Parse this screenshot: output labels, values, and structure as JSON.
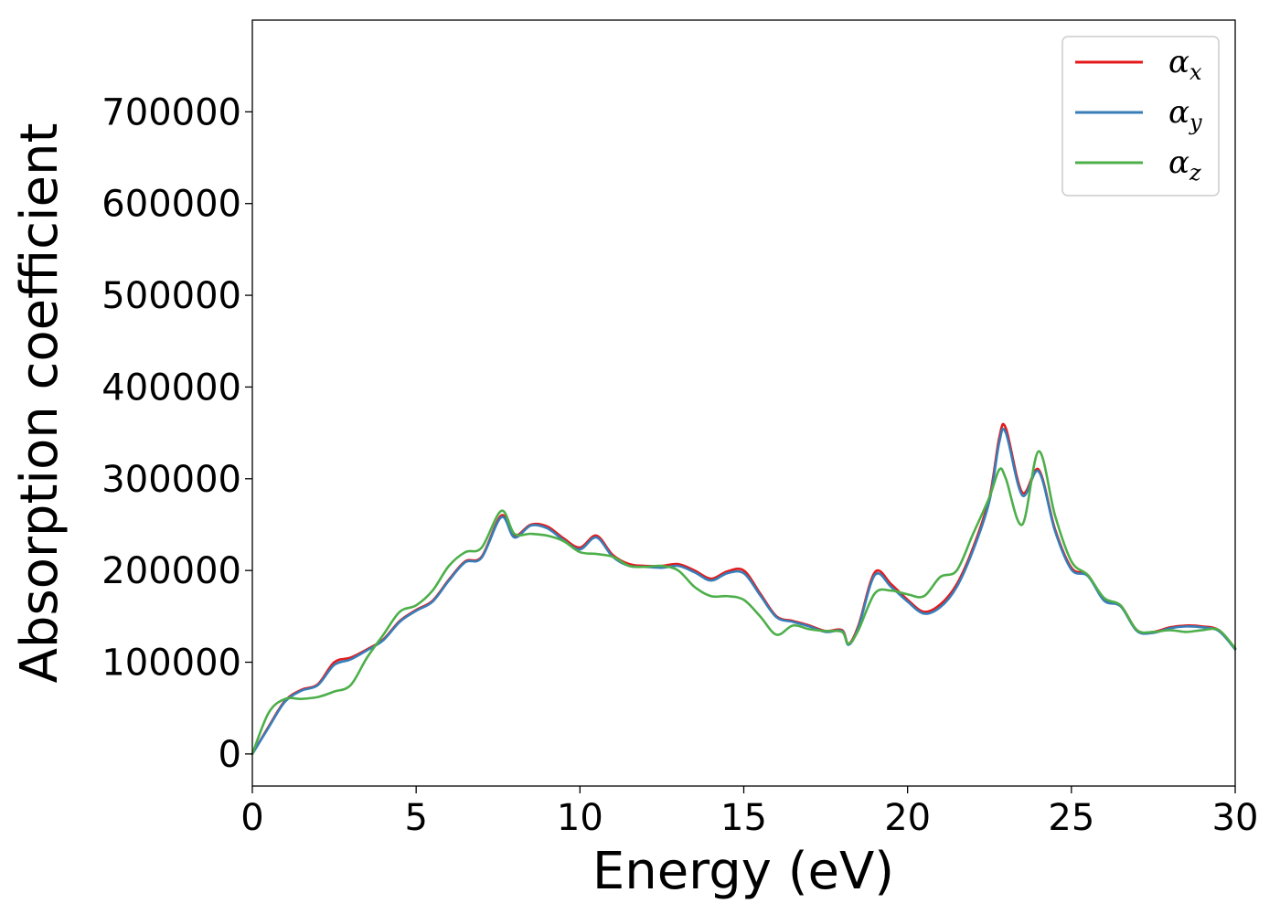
{
  "chart_data": {
    "type": "line",
    "xlabel": "Energy (eV)",
    "ylabel": "Absorption coefficient",
    "xlim": [
      0,
      30
    ],
    "ylim": [
      -35000,
      800000
    ],
    "xticks": [
      0,
      5,
      10,
      15,
      20,
      25,
      30
    ],
    "yticks": [
      0,
      100000,
      200000,
      300000,
      400000,
      500000,
      600000,
      700000
    ],
    "grid": false,
    "legend_position": "top-right",
    "series": [
      {
        "name": "α",
        "subscript": "x",
        "color": "#e41a1c",
        "x": [
          0,
          0.5,
          1,
          1.5,
          2,
          2.5,
          3,
          3.5,
          4,
          4.5,
          5,
          5.5,
          6,
          6.5,
          7,
          7.6,
          8,
          8.5,
          9,
          9.5,
          10,
          10.5,
          11,
          11.5,
          12,
          12.5,
          13,
          13.5,
          14,
          14.5,
          15,
          15.5,
          16,
          16.5,
          17,
          17.5,
          18,
          18.2,
          18.5,
          19,
          19.5,
          20,
          20.5,
          21,
          21.5,
          22,
          22.5,
          22.8,
          23,
          23.5,
          24,
          24.5,
          25,
          25.5,
          26,
          26.5,
          27,
          27.5,
          28,
          28.5,
          29,
          29.5,
          30
        ],
        "values": [
          0,
          30000,
          58000,
          70000,
          76000,
          100000,
          105000,
          114000,
          125000,
          145000,
          157000,
          167000,
          190000,
          210000,
          215000,
          260000,
          238000,
          250000,
          248000,
          235000,
          225000,
          238000,
          217000,
          207000,
          205000,
          205000,
          207000,
          200000,
          191000,
          199000,
          200000,
          175000,
          150000,
          145000,
          140000,
          134000,
          135000,
          120000,
          140000,
          198000,
          185000,
          168000,
          155000,
          163000,
          185000,
          225000,
          280000,
          345000,
          355000,
          285000,
          310000,
          245000,
          203000,
          195000,
          168000,
          162000,
          135000,
          133000,
          138000,
          140000,
          139000,
          135000,
          115000
        ]
      },
      {
        "name": "α",
        "subscript": "y",
        "color": "#377eb8",
        "x": [
          0,
          0.5,
          1,
          1.5,
          2,
          2.5,
          3,
          3.5,
          4,
          4.5,
          5,
          5.5,
          6,
          6.5,
          7,
          7.6,
          8,
          8.5,
          9,
          9.5,
          10,
          10.5,
          11,
          11.5,
          12,
          12.5,
          13,
          13.5,
          14,
          14.5,
          15,
          15.5,
          16,
          16.5,
          17,
          17.5,
          18,
          18.2,
          18.5,
          19,
          19.5,
          20,
          20.5,
          21,
          21.5,
          22,
          22.5,
          22.8,
          23,
          23.5,
          24,
          24.5,
          25,
          25.5,
          26,
          26.5,
          27,
          27.5,
          28,
          28.5,
          29,
          29.5,
          30
        ],
        "values": [
          0,
          29000,
          57000,
          69000,
          75000,
          97000,
          103000,
          113000,
          124000,
          144000,
          156000,
          166000,
          189000,
          209000,
          214000,
          258000,
          236000,
          249000,
          246000,
          233000,
          223000,
          236000,
          215000,
          205000,
          204000,
          203000,
          205000,
          198000,
          189000,
          197000,
          197000,
          173000,
          149000,
          144000,
          139000,
          133000,
          134000,
          119000,
          138000,
          195000,
          182000,
          166000,
          153000,
          160000,
          182000,
          222000,
          276000,
          340000,
          350000,
          282000,
          308000,
          243000,
          201000,
          194000,
          167000,
          161000,
          134000,
          132000,
          137000,
          139000,
          138000,
          134000,
          114000
        ]
      },
      {
        "name": "α",
        "subscript": "z",
        "color": "#4daf4a",
        "x": [
          0,
          0.5,
          1,
          1.5,
          2,
          2.5,
          3,
          3.5,
          4,
          4.5,
          5,
          5.5,
          6,
          6.5,
          7,
          7.6,
          8,
          8.5,
          9,
          9.5,
          10,
          10.5,
          11,
          11.5,
          12,
          12.5,
          13,
          13.5,
          14,
          14.5,
          15,
          15.5,
          16,
          16.5,
          17,
          17.5,
          18,
          18.2,
          18.5,
          19,
          19.5,
          20,
          20.5,
          21,
          21.5,
          22,
          22.5,
          22.8,
          23,
          23.5,
          24,
          24.5,
          25,
          25.5,
          26,
          26.5,
          27,
          27.5,
          28,
          28.5,
          29,
          29.5,
          30
        ],
        "values": [
          0,
          45000,
          60000,
          60000,
          62000,
          68000,
          75000,
          105000,
          130000,
          155000,
          162000,
          178000,
          205000,
          220000,
          225000,
          265000,
          240000,
          240000,
          238000,
          232000,
          220000,
          218000,
          215000,
          205000,
          204000,
          205000,
          200000,
          182000,
          172000,
          172000,
          168000,
          150000,
          130000,
          140000,
          136000,
          134000,
          133000,
          120000,
          135000,
          175000,
          178000,
          174000,
          172000,
          193000,
          200000,
          240000,
          280000,
          310000,
          300000,
          250000,
          330000,
          260000,
          210000,
          195000,
          170000,
          162000,
          135000,
          133000,
          135000,
          133000,
          135000,
          135000,
          115000
        ]
      }
    ]
  }
}
